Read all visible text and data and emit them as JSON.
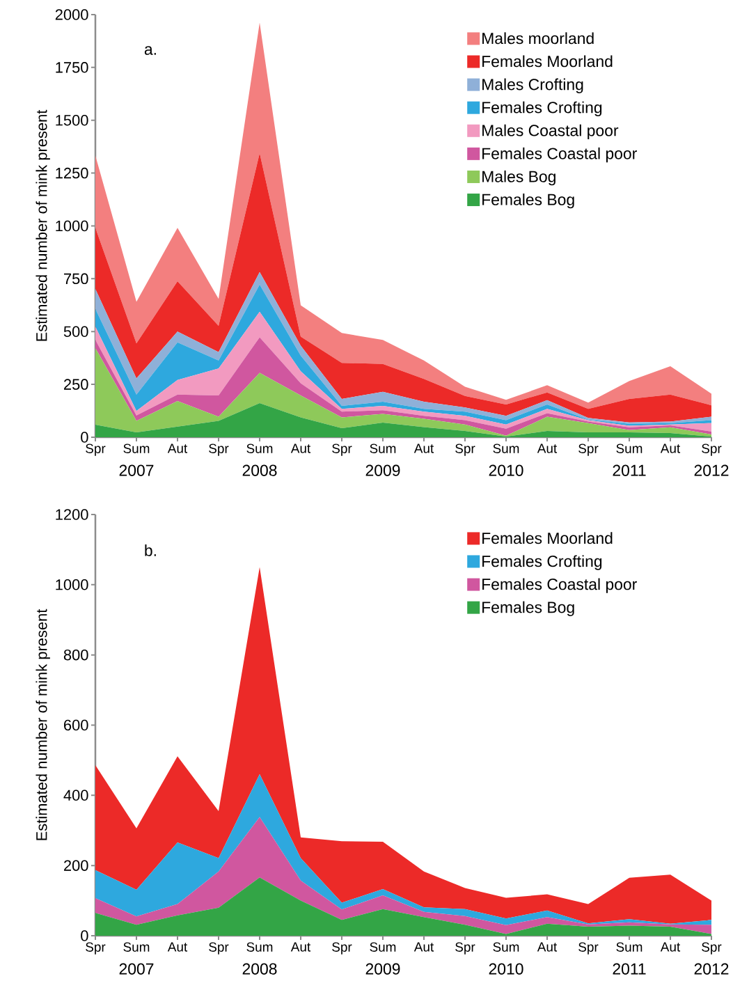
{
  "chart_data": [
    {
      "type": "area",
      "title": "a.",
      "ylabel": "Estimated number of mink present",
      "stacked": true,
      "legend": "top right",
      "categories": [
        "Spr",
        "Sum",
        "Aut",
        "Spr",
        "Sum",
        "Aut",
        "Spr",
        "Sum",
        "Aut",
        "Spr",
        "Sum",
        "Aut",
        "Spr",
        "Sum",
        "Aut",
        "Spr"
      ],
      "annotations": [
        "2007",
        "2008",
        "2009",
        "2010",
        "2011",
        "2012"
      ],
      "ylim": [
        0,
        2000
      ],
      "yticks": [
        0,
        250,
        500,
        750,
        1000,
        1250,
        1500,
        1750,
        2000
      ],
      "series": [
        {
          "name": "Females Bog",
          "color": "#33a546",
          "values": [
            59,
            23,
            50,
            77,
            161,
            94,
            43,
            69,
            48,
            30,
            3,
            30,
            23,
            23,
            20,
            3
          ]
        },
        {
          "name": "Males Bog",
          "color": "#8ec95a",
          "values": [
            363,
            54,
            121,
            20,
            144,
            104,
            51,
            41,
            39,
            30,
            4,
            67,
            44,
            11,
            27,
            10
          ]
        },
        {
          "name": "Females Coastal poor",
          "color": "#d0579f",
          "values": [
            38,
            26,
            31,
            101,
            168,
            57,
            27,
            18,
            14,
            21,
            33,
            17,
            7,
            13,
            9,
            14
          ]
        },
        {
          "name": "Males Coastal poor",
          "color": "#f29ac0",
          "values": [
            63,
            21,
            69,
            127,
            121,
            57,
            13,
            20,
            20,
            20,
            20,
            20,
            7,
            7,
            4,
            40
          ]
        },
        {
          "name": "Females Crofting",
          "color": "#2ea8de",
          "values": [
            84,
            78,
            178,
            38,
            128,
            74,
            14,
            20,
            13,
            20,
            21,
            21,
            2,
            9,
            7,
            14
          ]
        },
        {
          "name": "Males Crofting",
          "color": "#8fb0d8",
          "values": [
            95,
            76,
            51,
            40,
            60,
            47,
            33,
            47,
            34,
            20,
            20,
            20,
            8,
            7,
            7,
            16
          ]
        },
        {
          "name": "Females Moorland",
          "color": "#ec2a28",
          "values": [
            289,
            166,
            238,
            124,
            562,
            43,
            171,
            132,
            108,
            54,
            54,
            37,
            43,
            111,
            128,
            54
          ]
        },
        {
          "name": "Males moorland",
          "color": "#f37f7f",
          "values": [
            342,
            197,
            253,
            128,
            618,
            148,
            141,
            113,
            87,
            44,
            22,
            34,
            30,
            85,
            134,
            55
          ]
        }
      ]
    },
    {
      "type": "area",
      "title": "b.",
      "ylabel": "Estimated number of mink present",
      "stacked": true,
      "legend": "top right",
      "categories": [
        "Spr",
        "Sum",
        "Aut",
        "Spr",
        "Sum",
        "Aut",
        "Spr",
        "Sum",
        "Aut",
        "Spr",
        "Sum",
        "Aut",
        "Spr",
        "Sum",
        "Aut",
        "Spr"
      ],
      "annotations": [
        "2007",
        "2008",
        "2009",
        "2010",
        "2011",
        "2012"
      ],
      "ylim": [
        0,
        1200
      ],
      "yticks": [
        0,
        200,
        400,
        600,
        800,
        1000,
        1200
      ],
      "series": [
        {
          "name": "Females Bog",
          "color": "#33a546",
          "values": [
            65,
            31,
            58,
            80,
            166,
            100,
            45,
            76,
            53,
            31,
            5,
            34,
            26,
            29,
            26,
            5
          ]
        },
        {
          "name": "Females Coastal poor",
          "color": "#d0579f",
          "values": [
            42,
            24,
            32,
            103,
            172,
            57,
            30,
            39,
            15,
            25,
            25,
            19,
            6,
            9,
            6,
            26
          ]
        },
        {
          "name": "Females Crofting",
          "color": "#2ea8de",
          "values": [
            80,
            76,
            176,
            38,
            122,
            64,
            19,
            18,
            13,
            20,
            19,
            19,
            3,
            9,
            2,
            14
          ]
        },
        {
          "name": "Females Moorland",
          "color": "#ec2a28",
          "values": [
            299,
            175,
            245,
            134,
            590,
            59,
            175,
            135,
            102,
            60,
            59,
            46,
            55,
            118,
            140,
            55
          ]
        }
      ]
    }
  ]
}
